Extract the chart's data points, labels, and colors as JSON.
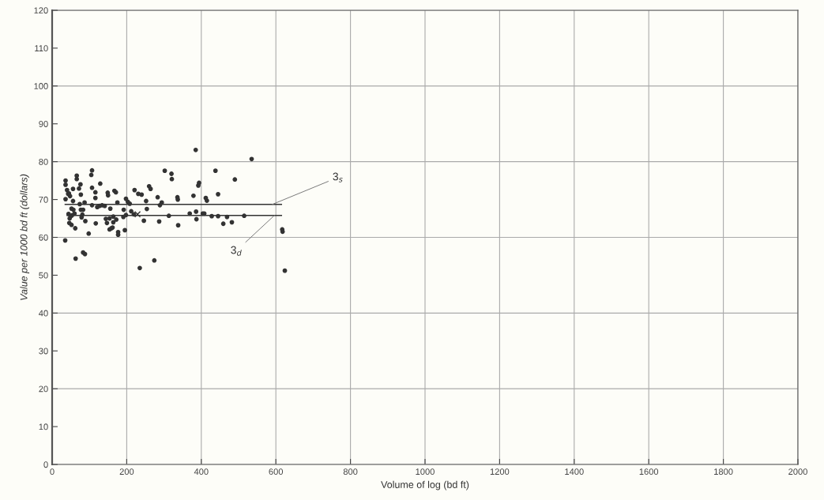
{
  "chart_data": {
    "type": "scatter",
    "xlabel": "Volume of log (bd ft)",
    "ylabel": "Value per 1000 bd ft (dollars)",
    "xlim": [
      0,
      2000
    ],
    "xticks": [
      0,
      200,
      400,
      600,
      800,
      1000,
      1200,
      1400,
      1600,
      1800,
      2000
    ],
    "ylim": [
      0,
      120
    ],
    "yticks": [
      0,
      10,
      20,
      30,
      40,
      50,
      60,
      70,
      80,
      90,
      100,
      110,
      120
    ],
    "grid": true,
    "marker": "circle",
    "series": [
      {
        "color": "#333333",
        "x": [
          107,
          105,
          302,
          320,
          321,
          66,
          66,
          36,
          36,
          129,
          76,
          72,
          56,
          40,
          43,
          45,
          48,
          107,
          116,
          116,
          149,
          150,
          167,
          171,
          221,
          260,
          264,
          231,
          240,
          77,
          36,
          56,
          74,
          87,
          107,
          121,
          127,
          134,
          141,
          156,
          175,
          198,
          203,
          208,
          192,
          212,
          219,
          252,
          254,
          283,
          289,
          294,
          336,
          246,
          287,
          313,
          338,
          52,
          57,
          60,
          53,
          50,
          47,
          44,
          77,
          81,
          79,
          83,
          89,
          46,
          52,
          62,
          98,
          117,
          144,
          147,
          154,
          164,
          172,
          154,
          159,
          162,
          177,
          177,
          195,
          164,
          191,
          198,
          35,
          63,
          83,
          88,
          235,
          274,
          385,
          535,
          438,
          490,
          394,
          392,
          337,
          379,
          412,
          415,
          445,
          369,
          386,
          387,
          404,
          408,
          428,
          445,
          469,
          459,
          482,
          515,
          617,
          618,
          624
        ],
        "values": [
          77.7,
          76.5,
          77.6,
          76.8,
          75.4,
          76.3,
          75.4,
          75.0,
          73.9,
          74.2,
          74.0,
          72.9,
          72.8,
          72.5,
          71.5,
          71.6,
          70.9,
          73.1,
          71.9,
          70.4,
          71.8,
          71.1,
          72.3,
          71.9,
          72.5,
          73.5,
          72.8,
          71.5,
          71.3,
          71.3,
          70.1,
          69.6,
          68.8,
          69.2,
          68.5,
          68.0,
          68.3,
          68.5,
          68.3,
          67.6,
          69.2,
          70.2,
          69.4,
          68.9,
          67.3,
          66.9,
          66.1,
          69.6,
          67.5,
          70.6,
          68.5,
          69.2,
          70.6,
          64.4,
          64.2,
          65.7,
          63.2,
          67.6,
          67.3,
          66.3,
          65.8,
          65.6,
          65.0,
          66.2,
          67.3,
          66.0,
          65.3,
          67.3,
          64.3,
          63.8,
          63.3,
          62.4,
          61.0,
          63.7,
          64.9,
          63.8,
          65.0,
          64.0,
          64.7,
          62.1,
          62.4,
          62.6,
          61.4,
          60.7,
          61.9,
          65.5,
          65.4,
          65.9,
          59.2,
          54.4,
          56.0,
          55.6,
          51.9,
          53.9,
          83.1,
          80.7,
          77.6,
          75.3,
          74.4,
          73.7,
          70.0,
          71.0,
          70.4,
          69.7,
          71.4,
          66.3,
          66.8,
          64.8,
          66.3,
          66.3,
          65.6,
          65.6,
          65.4,
          63.6,
          64.0,
          65.7,
          62.1,
          61.5,
          51.2
        ]
      },
      {
        "color": "#333333",
        "marker": "cross",
        "x": [
          229
        ],
        "values": [
          66.1
        ]
      },
      {
        "type": "line",
        "color": "#333333",
        "marker": "none",
        "x": [
          35,
          615
        ],
        "values": [
          68.7,
          68.7
        ]
      },
      {
        "type": "line",
        "color": "#333333",
        "marker": "none",
        "x": [
          40,
          615
        ],
        "values": [
          65.8,
          65.8
        ]
      }
    ],
    "annotations": [
      {
        "text": "3$_{s}$",
        "x": 590,
        "y": 68.7
      },
      {
        "text": "3$_{d}$",
        "x": 596,
        "y": 65.8
      }
    ]
  }
}
